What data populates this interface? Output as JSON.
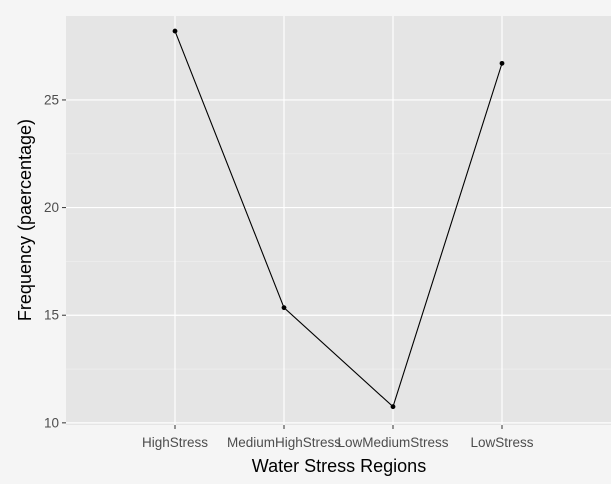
{
  "chart_data": {
    "type": "line",
    "title": "",
    "xlabel": "Water Stress Regions",
    "ylabel": "Frequency (paercentage)",
    "categories": [
      "HighStress",
      "MediumHighStress",
      "LowMediumStress",
      "LowStress"
    ],
    "series": [
      {
        "values": [
          28.2,
          15.35,
          10.75,
          26.7
        ]
      }
    ],
    "yticks": [
      10,
      15,
      20,
      25
    ],
    "ylim": [
      9.9,
      28.9
    ],
    "grid": true,
    "legend": "none",
    "colors": {
      "panel_background": "#e5e5e5",
      "grid_major": "#ffffff",
      "grid_minor": "#f0f0f0",
      "line": "#000000",
      "tick_label": "#4d4d4d"
    }
  }
}
